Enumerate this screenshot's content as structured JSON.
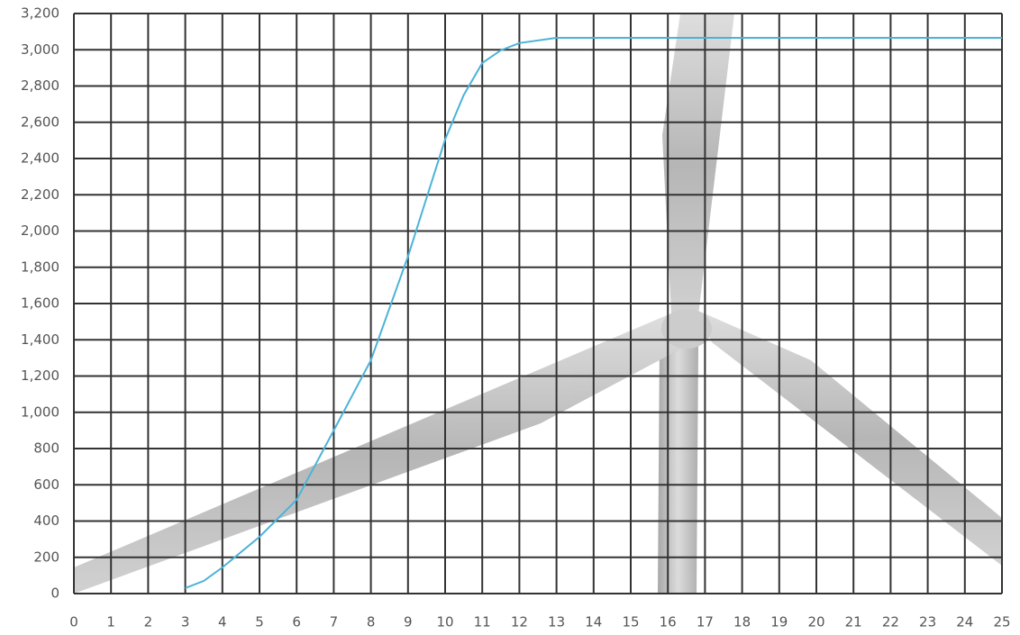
{
  "chart_data": {
    "type": "line",
    "x": [
      3,
      3.5,
      4,
      5,
      6,
      7,
      8,
      9,
      10,
      10.5,
      11,
      11.5,
      12,
      13,
      14,
      15,
      16,
      17,
      18,
      19,
      20,
      21,
      22,
      23,
      24,
      25
    ],
    "values": [
      30,
      70,
      144,
      313,
      517,
      900,
      1287,
      1860,
      2505,
      2750,
      2927,
      2997,
      3037,
      3066,
      3066,
      3066,
      3066,
      3066,
      3066,
      3066,
      3066,
      3066,
      3066,
      3066,
      3066,
      3066
    ],
    "color": "#4cb3d8",
    "xlim": [
      0,
      25
    ],
    "xticks": [
      0,
      1,
      2,
      3,
      4,
      5,
      6,
      7,
      8,
      9,
      10,
      11,
      12,
      13,
      14,
      15,
      16,
      17,
      18,
      19,
      20,
      21,
      22,
      23,
      24,
      25
    ],
    "ylim": [
      0,
      3200
    ],
    "yticks": [
      0,
      200,
      400,
      600,
      800,
      {
        "value": 1000,
        "label": "1,000"
      },
      {
        "value": 1200,
        "label": "1,200"
      },
      {
        "value": 1400,
        "label": "1,400"
      },
      {
        "value": 1600,
        "label": "1,600"
      },
      {
        "value": 1800,
        "label": "1,800"
      },
      {
        "value": 2000,
        "label": "2,000"
      },
      {
        "value": 2200,
        "label": "2,200"
      },
      {
        "value": 2400,
        "label": "2,400"
      },
      {
        "value": 2600,
        "label": "2,600"
      },
      {
        "value": 2800,
        "label": "2,800"
      },
      {
        "value": 3000,
        "label": "3,000"
      },
      {
        "value": 3200,
        "label": "3,200"
      }
    ],
    "grid": true
  }
}
